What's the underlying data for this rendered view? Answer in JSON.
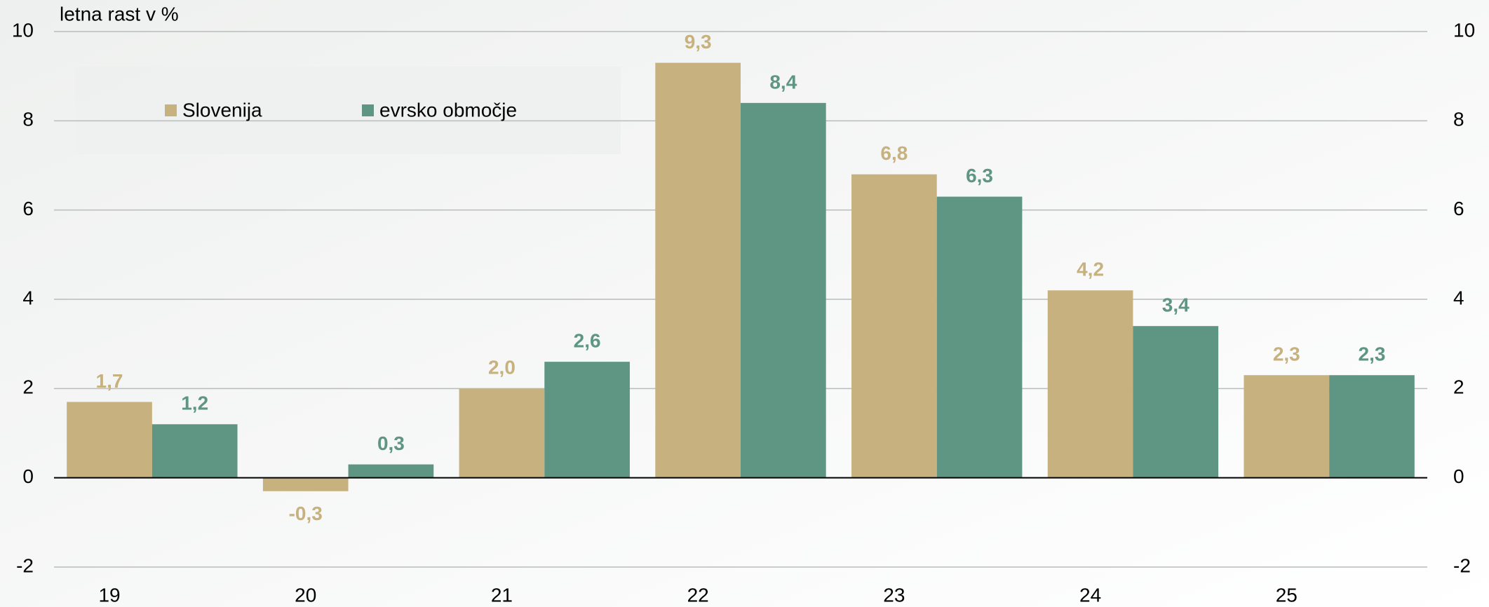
{
  "chart_data": {
    "type": "bar",
    "y_axis_label": "letna rast v %",
    "categories": [
      "19",
      "20",
      "21",
      "22",
      "23",
      "24",
      "25"
    ],
    "series": [
      {
        "name": "Slovenija",
        "color": "#c7b27f",
        "values": [
          1.7,
          -0.3,
          2.0,
          9.3,
          6.8,
          4.2,
          2.3
        ],
        "value_labels": [
          "1,7",
          "-0,3",
          "2,0",
          "9,3",
          "6,8",
          "4,2",
          "2,3"
        ]
      },
      {
        "name": "evrsko območje",
        "color": "#5f9683",
        "values": [
          1.2,
          0.3,
          2.6,
          8.4,
          6.3,
          3.4,
          2.3
        ],
        "value_labels": [
          "1,2",
          "0,3",
          "2,6",
          "8,4",
          "6,3",
          "3,4",
          "2,3"
        ]
      }
    ],
    "ylim": [
      -2,
      10
    ],
    "yticks": [
      -2,
      0,
      2,
      4,
      6,
      8,
      10
    ],
    "y2lim": [
      -2,
      10
    ],
    "y2ticks": [
      -2,
      0,
      2,
      4,
      6,
      8,
      10
    ],
    "grid": true,
    "legend": "top-left"
  }
}
